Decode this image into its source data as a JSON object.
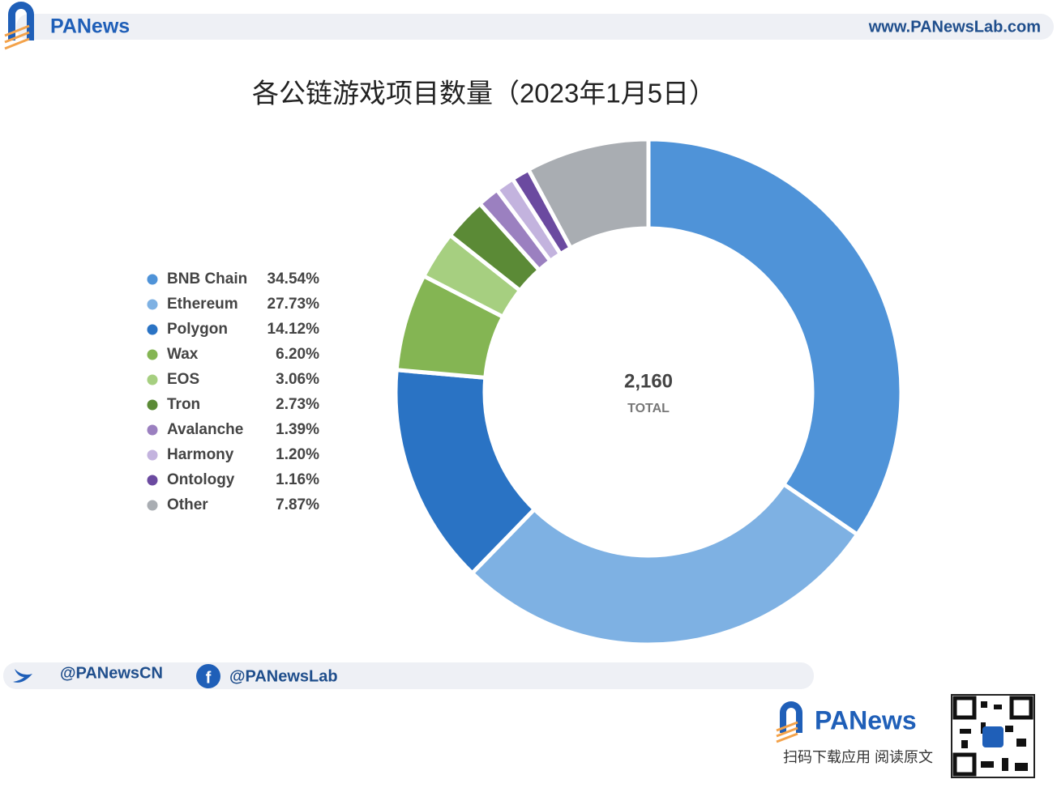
{
  "header": {
    "brand": "PANews",
    "url": "www.PANewsLab.com"
  },
  "chart_data": {
    "type": "donut",
    "title": "各公链游戏项目数量（2023年1月5日）",
    "categories": [
      "BNB Chain",
      "Ethereum",
      "Polygon",
      "Wax",
      "EOS",
      "Tron",
      "Avalanche",
      "Harmony",
      "Ontology",
      "Other"
    ],
    "values": [
      34.54,
      27.73,
      14.12,
      6.2,
      3.06,
      2.73,
      1.39,
      1.2,
      1.16,
      7.87
    ],
    "value_labels": [
      "34.54%",
      "27.73%",
      "14.12%",
      "6.20%",
      "3.06%",
      "2.73%",
      "1.39%",
      "1.20%",
      "1.16%",
      "7.87%"
    ],
    "colors": [
      "#4f93d8",
      "#7eb1e3",
      "#2a73c4",
      "#84b553",
      "#a6cf80",
      "#5b8a36",
      "#9b80c0",
      "#c3b3de",
      "#6b4aa0",
      "#a9adb2"
    ],
    "center_text": "2,160",
    "center_label": "TOTAL",
    "legend": "left"
  },
  "footer": {
    "twitter": "@PANewsCN",
    "facebook": "@PANewsLab",
    "brand": "PANews",
    "slogan": "扫码下载应用  阅读原文"
  }
}
